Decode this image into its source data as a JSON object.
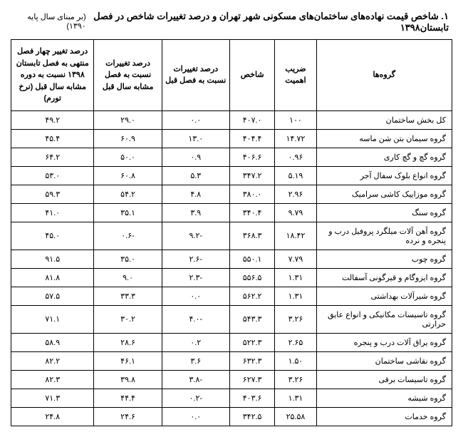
{
  "title": "۱. شاخص قیمت نهاده‌های ساختمان‌های مسکونی شهر تهران و درصد تغییرات شاخص در فصل تابستان۱۳۹۸",
  "subtitle": "(بر مبنای سال پایه ۱۳۹۰)",
  "headers": {
    "groups": "گروه‌ها",
    "weight": "ضریب اهمیت",
    "index": "شاخص",
    "chg_prev_q": "درصد تغییرات نسبت به فصل قبل",
    "chg_prev_y": "درصد تغییرات نسبت به فصل مشابه سال قبل",
    "chg_4q": "درصد تغییر چهار فصل منتهی به فصل تابستان ۱۳۹۸ نسبت به دوره مشابه سال قبل (نرخ تورم)"
  },
  "rows": [
    {
      "name": "کل بخش ساختمان",
      "weight": "۱۰۰",
      "index": "۴۰۷.۰",
      "c1": "۰.۰",
      "c2": "۲۹.۰",
      "c3": "۴۹.۲"
    },
    {
      "name": "گروه  سیمان بتن شن ماسه",
      "weight": "۱۴.۷۲",
      "index": "۴۰۴.۴",
      "c1": "۱۳.۰",
      "c2": "۶۰.۹",
      "c3": "۴۵.۴"
    },
    {
      "name": "گروه گچ و گچ کاری",
      "weight": "۰.۹۶",
      "index": "۴۰۶.۶",
      "c1": "۰.۹",
      "c2": "۵۰.۰",
      "c3": "۶۴.۲"
    },
    {
      "name": "گروه انواع بلوک سفال آجر",
      "weight": "۵.۱۹",
      "index": "۳۴۷.۲",
      "c1": "۵.۳",
      "c2": "۶۰.۸",
      "c3": "۵۳.۰"
    },
    {
      "name": "گروه موزاییک کاشی سرامیک",
      "weight": "۲.۹۶",
      "index": "۳۸۰.۰",
      "c1": "۴.۸",
      "c2": "۵۴.۲",
      "c3": "۵۹.۳"
    },
    {
      "name": "گروه سنگ",
      "weight": "۹.۷۹",
      "index": "۳۴۰.۴",
      "c1": "۳.۹",
      "c2": "۳۵.۱",
      "c3": "۴۱.۰"
    },
    {
      "name": "گروه آهن آلات میلگرد پروفیل درب و پنجره و نرده",
      "weight": "۱۸.۴۲",
      "index": "۳۶۸.۳",
      "c1": "-۹.۲",
      "c2": "-۰.۶",
      "c3": "۴۵.۰"
    },
    {
      "name": "گروه چوب",
      "weight": "۷.۷۹",
      "index": "۵۵۰.۱",
      "c1": "-۲.۶",
      "c2": "۳۵.۰",
      "c3": "۹۱.۵"
    },
    {
      "name": "گروه ایزوگام و قیرگونی آسفالت",
      "weight": "۱.۳۱",
      "index": "۵۵۶.۵",
      "c1": "-۲.۳",
      "c2": "۹.۰",
      "c3": "۸۱.۸"
    },
    {
      "name": "گروه شیرآلات بهداشتی",
      "weight": "۱.۳۱",
      "index": "۵۶۲.۲",
      "c1": "۰.۰",
      "c2": "۳۳.۳",
      "c3": "۵۷.۵"
    },
    {
      "name": "گروه تاسیسات مکانیکی و انواع عایق حرارتی",
      "weight": "۳.۲۶",
      "index": "۵۴۳.۳",
      "c1": "-۴.۰",
      "c2": "۳۰.۲",
      "c3": "۷۱.۱"
    },
    {
      "name": "گروه یراق آلات درب و پنجره",
      "weight": "۲.۶۵",
      "index": "۵۲۲.۳",
      "c1": "۰.۲",
      "c2": "۲۸.۶",
      "c3": "۵۸.۹"
    },
    {
      "name": "گروه نقاشی ساختمان",
      "weight": "۱.۵۰",
      "index": "۶۳۲.۳",
      "c1": "۳.۶",
      "c2": "۴۶.۱",
      "c3": "۸۲.۲"
    },
    {
      "name": "گروه تاسیسات برقی",
      "weight": "۳.۲۶",
      "index": "۶۲۷.۳",
      "c1": "-۳.۸",
      "c2": "۳۹.۸",
      "c3": "۸۲.۳"
    },
    {
      "name": "گروه شیشه",
      "weight": "۱.۳۱",
      "index": "۴۰۳.۶",
      "c1": "-۰.۲",
      "c2": "۴۴.۴",
      "c3": "۷۱.۳"
    },
    {
      "name": "گروه خدمات",
      "weight": "۲۵.۵۸",
      "index": "۳۴۲.۵",
      "c1": "۰.۰",
      "c2": "۲۴.۶",
      "c3": "۲۴.۸"
    }
  ]
}
